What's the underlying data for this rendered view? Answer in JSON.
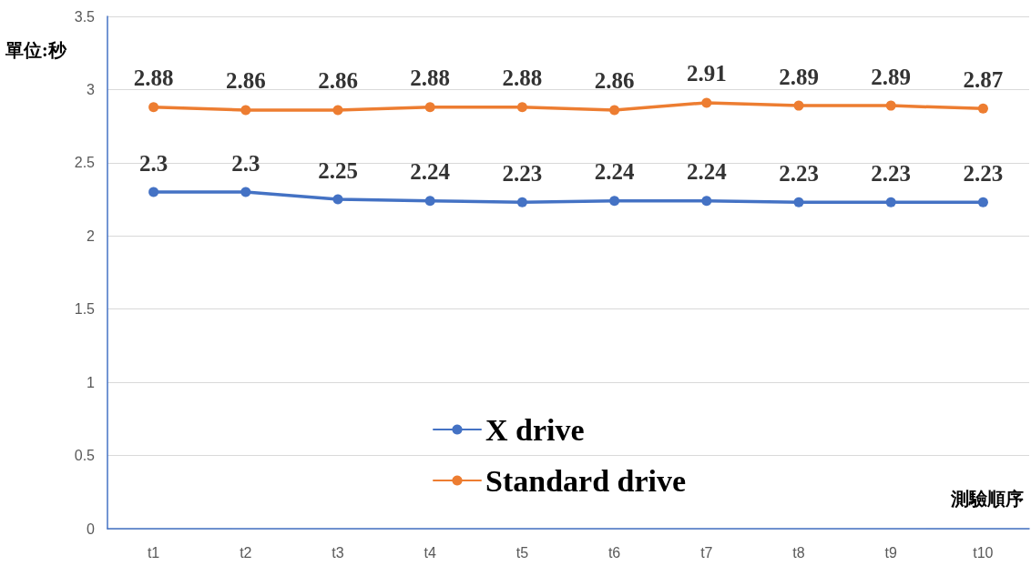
{
  "chart_data": {
    "type": "line",
    "ylabel": "單位:秒",
    "xlabel": "測驗順序",
    "categories": [
      "t1",
      "t2",
      "t3",
      "t4",
      "t5",
      "t6",
      "t7",
      "t8",
      "t9",
      "t10"
    ],
    "series": [
      {
        "name": "X drive",
        "color": "#4472c4",
        "values": [
          2.3,
          2.3,
          2.25,
          2.24,
          2.23,
          2.24,
          2.24,
          2.23,
          2.23,
          2.23
        ]
      },
      {
        "name": "Standard drive",
        "color": "#ed7d31",
        "values": [
          2.88,
          2.86,
          2.86,
          2.88,
          2.88,
          2.86,
          2.91,
          2.89,
          2.89,
          2.87
        ]
      }
    ],
    "ylim": [
      0,
      3.5
    ],
    "yticks": [
      0,
      0.5,
      1,
      1.5,
      2,
      2.5,
      3,
      3.5
    ],
    "grid": "y",
    "legend": "bottom",
    "marker": "circle",
    "line_style": "solid",
    "data_labels": true
  }
}
